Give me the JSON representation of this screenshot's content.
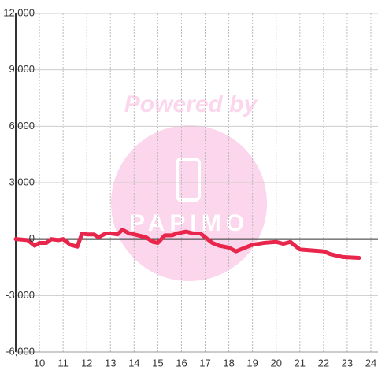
{
  "chart_data": {
    "type": "line",
    "watermark": "Powered by",
    "logo": "PAPIMO",
    "x": [
      9.0,
      9.5,
      9.8,
      10.0,
      10.3,
      10.5,
      10.8,
      11.0,
      11.3,
      11.6,
      11.8,
      12.0,
      12.3,
      12.5,
      12.8,
      13.0,
      13.3,
      13.5,
      13.8,
      14.0,
      14.5,
      14.8,
      15.0,
      15.3,
      15.6,
      15.8,
      16.2,
      16.5,
      16.8,
      17.0,
      17.3,
      17.6,
      18.0,
      18.3,
      18.6,
      19.0,
      19.5,
      20.0,
      20.3,
      20.6,
      21.0,
      21.5,
      22.0,
      22.3,
      22.8,
      23.5
    ],
    "series": [
      {
        "color": "#e8254a",
        "values": [
          0,
          -50,
          -350,
          -200,
          -200,
          0,
          -50,
          0,
          -300,
          -400,
          300,
          250,
          250,
          100,
          300,
          300,
          250,
          500,
          300,
          250,
          100,
          -150,
          -200,
          200,
          200,
          300,
          400,
          300,
          300,
          100,
          -200,
          -350,
          -450,
          -650,
          -500,
          -300,
          -200,
          -150,
          -250,
          -150,
          -550,
          -600,
          -650,
          -800,
          -950,
          -1000
        ]
      }
    ],
    "xlim": [
      9.0,
      24.3
    ],
    "xticks": [
      10,
      11,
      12,
      13,
      14,
      15,
      16,
      17,
      18,
      19,
      20,
      21,
      22,
      23,
      24
    ],
    "ylim": [
      -6000,
      12000
    ],
    "yticks": [
      {
        "value": -6000,
        "label": "-6,000"
      },
      {
        "value": -3000,
        "label": "-3,000"
      },
      0,
      {
        "value": 3000,
        "label": "3,000"
      },
      {
        "value": 6000,
        "label": "6,000"
      },
      {
        "value": 9000,
        "label": "9,000"
      },
      {
        "value": 12000,
        "label": "12,000"
      }
    ],
    "grid": true
  }
}
